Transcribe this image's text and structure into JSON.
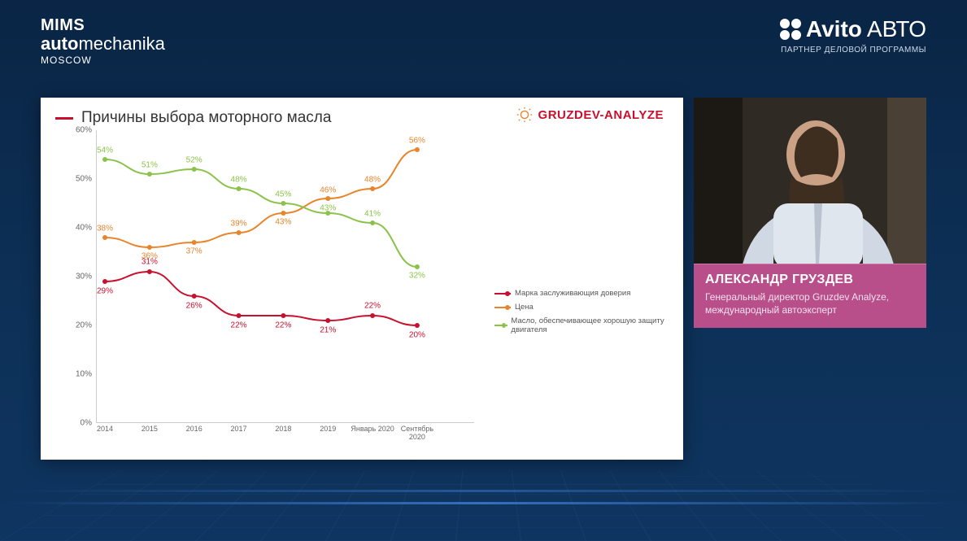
{
  "header": {
    "mims_l1": "MIMS",
    "mims_l2_bold": "auto",
    "mims_l2_rest": "mechanika",
    "mims_l3": "MOSCOW",
    "avito_brand": "Avito",
    "avito_suffix": "АВТО",
    "avito_sub": "ПАРТНЕР ДЕЛОВОЙ ПРОГРАММЫ"
  },
  "speaker": {
    "name": "АЛЕКСАНДР ГРУЗДЕВ",
    "role": "Генеральный директор Gruzdev Analyze, международный автоэксперт",
    "lower_third_bg": "#b84e8a"
  },
  "slide": {
    "title": "Причины выбора моторного масла",
    "brand": "GRUZDEV-ANALYZE",
    "brand_color": "#c8102e",
    "background_color": "#ffffff"
  },
  "chart": {
    "type": "line",
    "categories": [
      "2014",
      "2015",
      "2016",
      "2017",
      "2018",
      "2019",
      "Январь 2020",
      "Сентябрь 2020"
    ],
    "ylim": [
      0,
      60
    ],
    "ytick_step": 10,
    "y_suffix": "%",
    "grid_color": "#cccccc",
    "label_fontsize": 10,
    "axis_fontsize": 10,
    "series": [
      {
        "name": "Марка заслуживающия доверия",
        "color": "#c8102e",
        "values": [
          29,
          31,
          26,
          22,
          22,
          21,
          22,
          20
        ],
        "label_dy": [
          12,
          -12,
          12,
          12,
          12,
          12,
          -12,
          12
        ]
      },
      {
        "name": "Цена",
        "color": "#e8852b",
        "values": [
          38,
          36,
          37,
          39,
          43,
          46,
          48,
          56
        ],
        "label_dy": [
          -11,
          11,
          11,
          -11,
          11,
          -10,
          -11,
          -11
        ]
      },
      {
        "name": "Масло, обеспечивающее хорошую защиту двигателя",
        "color": "#8bc34a",
        "values": [
          54,
          51,
          52,
          48,
          45,
          43,
          41,
          32
        ],
        "label_dy": [
          -11,
          -11,
          -11,
          -11,
          -11,
          -6,
          -11,
          11
        ]
      }
    ]
  }
}
